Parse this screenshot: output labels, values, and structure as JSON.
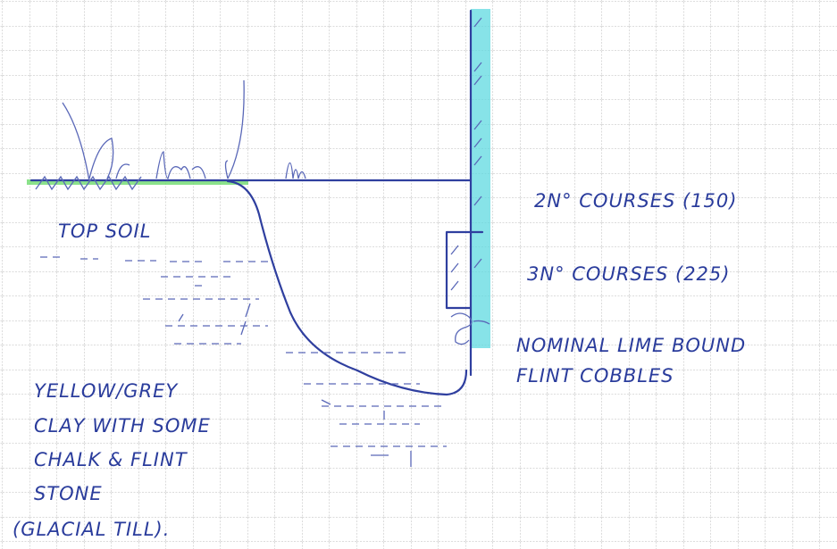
{
  "labels": {
    "top_soil": "TOP SOIL",
    "courses_2": "2N° COURSES (150)",
    "courses_3": "3N° COURSES (225)",
    "cobbles": [
      "NOMINAL LIME BOUND",
      "FLINT COBBLES"
    ],
    "clay": [
      "YELLOW/GREY",
      "CLAY WITH SOME",
      "CHALK & FLINT",
      "STONE",
      "(GLACIAL TILL)."
    ]
  }
}
